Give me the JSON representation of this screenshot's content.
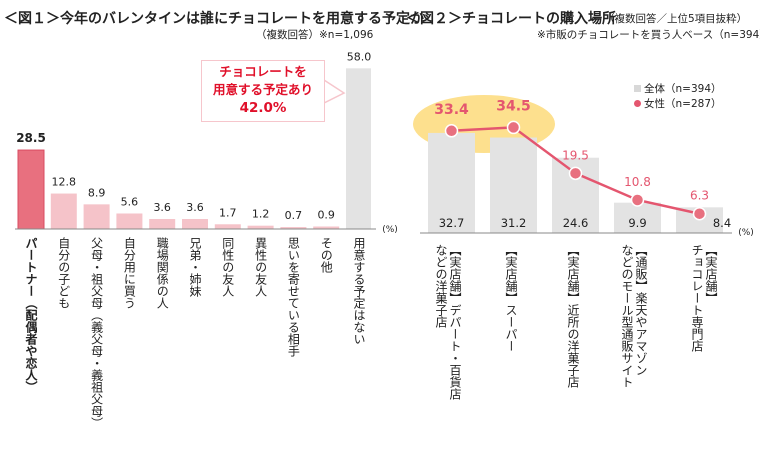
{
  "chart_data": [
    {
      "type": "bar",
      "title": "＜図１＞今年のバレンタインは誰にチョコレートを用意する予定か",
      "subtitle": "（複数回答）※n=1,096",
      "unit": "(%)",
      "categories": [
        "パートナー（配偶者や恋人）",
        "自分の子ども",
        "父母・祖父母（義父母・義祖父母）",
        "自分用に買う",
        "職場関係の人",
        "兄弟・姉妹",
        "同性の友人",
        "異性の友人",
        "思いを寄せている相手",
        "その他",
        "用意する予定はない"
      ],
      "values": [
        28.5,
        12.8,
        8.9,
        5.6,
        3.6,
        3.6,
        1.7,
        1.2,
        0.7,
        0.9,
        58.0
      ],
      "colors": [
        "#e8707f",
        "#f5c3c9",
        "#f5c3c9",
        "#f5c3c9",
        "#f5c3c9",
        "#f5c3c9",
        "#f5c3c9",
        "#f5c3c9",
        "#f5c3c9",
        "#f5c3c9",
        "#e3e3e3"
      ],
      "callout": {
        "line1": "チョコレートを",
        "line2": "用意する予定あり",
        "line3": "42.0%"
      }
    },
    {
      "type": "bar+line",
      "title": "＜図２＞チョコレートの購入場所",
      "subtitle1": "（複数回答／上位5項目抜粋）",
      "subtitle2": "※市販のチョコレートを買う人ベース（n=394）",
      "unit": "(%)",
      "categories": [
        [
          "【実店舗】デパート・百貨店",
          "などの洋菓子店"
        ],
        [
          "【実店舗】スーパー"
        ],
        [
          "【実店舗】近所の洋菓子店"
        ],
        [
          "【通販】楽天やアマゾン",
          "などのモール型通販サイト"
        ],
        [
          "【実店舗】",
          "チョコレート専門店"
        ]
      ],
      "series": [
        {
          "name": "全体（n=394）",
          "type": "bar",
          "values": [
            32.7,
            31.2,
            24.6,
            9.9,
            8.4
          ],
          "color": "#e3e3e3"
        },
        {
          "name": "女性（n=287）",
          "type": "line",
          "values": [
            33.4,
            34.5,
            19.5,
            10.8,
            6.3
          ],
          "color": "#e4566f"
        }
      ],
      "highlight_color": "#fde08e"
    }
  ]
}
